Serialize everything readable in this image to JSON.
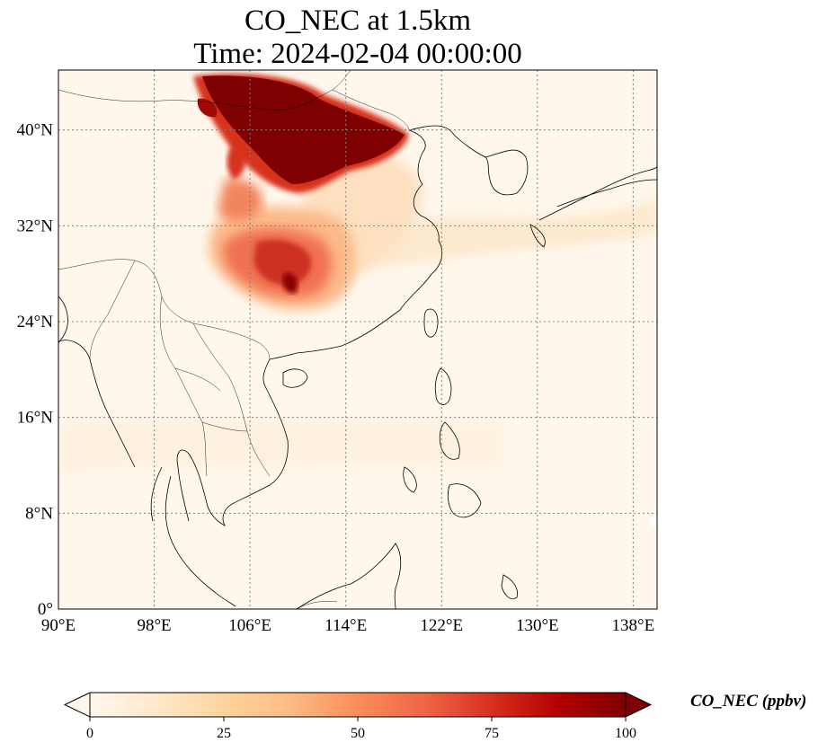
{
  "title": {
    "line1": "CO_NEC at 1.5km",
    "line2": "Time: 2024-02-04 00:00:00"
  },
  "map": {
    "projection": "PlateCarree",
    "lon_range": [
      90,
      140
    ],
    "lat_range": [
      0,
      45
    ],
    "lon_ticks": [
      "90°E",
      "98°E",
      "106°E",
      "114°E",
      "122°E",
      "130°E",
      "138°E"
    ],
    "lat_ticks": [
      "0°",
      "8°N",
      "16°N",
      "24°N",
      "32°N",
      "40°N"
    ],
    "gridlines": "dotted",
    "colormap": "OrRd",
    "features": [
      "coastlines",
      "country borders"
    ]
  },
  "colorbar": {
    "label": "CO_NEC (ppbv)",
    "min": 0,
    "max": 100,
    "extend": "both",
    "ticks": [
      "0",
      "25",
      "50",
      "75",
      "100"
    ],
    "colors": [
      "#fff7ec",
      "#fee8c8",
      "#fdd49e",
      "#fdbb84",
      "#fc8d59",
      "#ef6548",
      "#d7301f",
      "#b30000",
      "#7f0000"
    ]
  }
}
